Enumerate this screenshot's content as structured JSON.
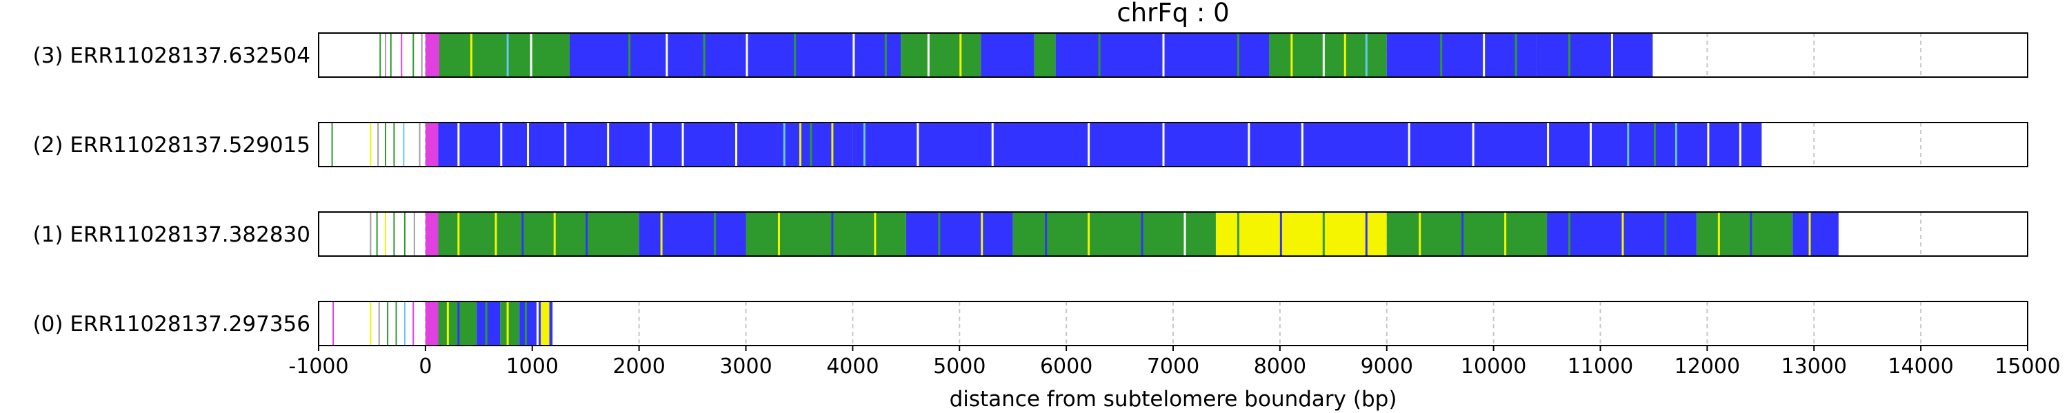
{
  "chart_data": {
    "type": "track",
    "title": "chrFq : 0",
    "xlabel": "distance from subtelomere boundary (bp)",
    "xlim": [
      -1000,
      15000
    ],
    "xticks": [
      -1000,
      0,
      1000,
      2000,
      3000,
      4000,
      5000,
      6000,
      7000,
      8000,
      9000,
      10000,
      11000,
      12000,
      13000,
      14000,
      15000
    ],
    "grid": "vertical-dashed",
    "colors": {
      "blue": "#3333ff",
      "green": "#2e9a2e",
      "yellow": "#f5f500",
      "light_blue": "#66c7f0",
      "magenta": "#e040e0",
      "gray": "#a0a0a0",
      "white": "#ffffff"
    },
    "reads": [
      {
        "label": "(3) ERR11028137.632504",
        "start": -430,
        "end": 11490,
        "prelude": [
          [
            -430,
            "green"
          ],
          [
            -380,
            "gray"
          ],
          [
            -330,
            "green"
          ],
          [
            -230,
            "magenta"
          ],
          [
            -120,
            "green"
          ],
          [
            -40,
            "gray"
          ]
        ],
        "segments": [
          [
            0,
            130,
            "magenta"
          ],
          [
            130,
            1350,
            "green"
          ],
          [
            1350,
            4450,
            "blue"
          ],
          [
            4450,
            5200,
            "green"
          ],
          [
            5200,
            5700,
            "blue"
          ],
          [
            5700,
            5900,
            "green"
          ],
          [
            5900,
            7900,
            "blue"
          ],
          [
            7900,
            9000,
            "green"
          ],
          [
            9000,
            10400,
            "blue"
          ],
          [
            10400,
            11490,
            "blue"
          ]
        ],
        "stripes": [
          [
            420,
            "yellow"
          ],
          [
            760,
            "light_blue"
          ],
          [
            980,
            "white"
          ],
          [
            1900,
            "green"
          ],
          [
            2250,
            "white"
          ],
          [
            2600,
            "green"
          ],
          [
            3000,
            "white"
          ],
          [
            3450,
            "green"
          ],
          [
            4000,
            "white"
          ],
          [
            4300,
            "green"
          ],
          [
            4700,
            "white"
          ],
          [
            5000,
            "yellow"
          ],
          [
            6300,
            "green"
          ],
          [
            6900,
            "white"
          ],
          [
            7600,
            "green"
          ],
          [
            8100,
            "yellow"
          ],
          [
            8400,
            "white"
          ],
          [
            8600,
            "yellow"
          ],
          [
            8800,
            "light_blue"
          ],
          [
            9500,
            "green"
          ],
          [
            9900,
            "white"
          ],
          [
            10200,
            "green"
          ],
          [
            10700,
            "green"
          ],
          [
            11100,
            "white"
          ]
        ]
      },
      {
        "label": "(2) ERR11028137.529015",
        "start": -880,
        "end": 12510,
        "prelude": [
          [
            -880,
            "green"
          ],
          [
            -520,
            "yellow"
          ],
          [
            -450,
            "gray"
          ],
          [
            -380,
            "green"
          ],
          [
            -300,
            "green"
          ],
          [
            -210,
            "light_blue"
          ],
          [
            -60,
            "gray"
          ]
        ],
        "segments": [
          [
            0,
            120,
            "magenta"
          ],
          [
            120,
            3300,
            "blue"
          ],
          [
            3300,
            4000,
            "blue"
          ],
          [
            4000,
            11200,
            "blue"
          ],
          [
            11200,
            12510,
            "blue"
          ]
        ],
        "stripes": [
          [
            300,
            "white"
          ],
          [
            700,
            "white"
          ],
          [
            950,
            "white"
          ],
          [
            1300,
            "white"
          ],
          [
            1700,
            "white"
          ],
          [
            2100,
            "white"
          ],
          [
            2400,
            "white"
          ],
          [
            2900,
            "white"
          ],
          [
            3350,
            "light_blue"
          ],
          [
            3500,
            "yellow"
          ],
          [
            3600,
            "green"
          ],
          [
            3800,
            "yellow"
          ],
          [
            4100,
            "light_blue"
          ],
          [
            4600,
            "white"
          ],
          [
            5300,
            "white"
          ],
          [
            6200,
            "white"
          ],
          [
            6900,
            "white"
          ],
          [
            7700,
            "white"
          ],
          [
            8200,
            "white"
          ],
          [
            9200,
            "white"
          ],
          [
            9800,
            "white"
          ],
          [
            10500,
            "white"
          ],
          [
            10900,
            "white"
          ],
          [
            11250,
            "light_blue"
          ],
          [
            11500,
            "green"
          ],
          [
            11700,
            "light_blue"
          ],
          [
            12000,
            "white"
          ],
          [
            12300,
            "white"
          ]
        ]
      },
      {
        "label": "(1) ERR11028137.382830",
        "start": -520,
        "end": 13230,
        "prelude": [
          [
            -520,
            "gray"
          ],
          [
            -460,
            "green"
          ],
          [
            -380,
            "yellow"
          ],
          [
            -300,
            "green"
          ],
          [
            -200,
            "green"
          ],
          [
            -110,
            "gray"
          ]
        ],
        "segments": [
          [
            0,
            120,
            "magenta"
          ],
          [
            120,
            2000,
            "green"
          ],
          [
            2000,
            3000,
            "blue"
          ],
          [
            3000,
            4500,
            "green"
          ],
          [
            4500,
            5500,
            "blue"
          ],
          [
            5500,
            7400,
            "green"
          ],
          [
            7400,
            9000,
            "yellow"
          ],
          [
            9000,
            10500,
            "green"
          ],
          [
            10500,
            11900,
            "blue"
          ],
          [
            11900,
            12800,
            "green"
          ],
          [
            12800,
            13230,
            "blue"
          ]
        ],
        "stripes": [
          [
            300,
            "yellow"
          ],
          [
            650,
            "yellow"
          ],
          [
            900,
            "blue"
          ],
          [
            1200,
            "yellow"
          ],
          [
            1500,
            "blue"
          ],
          [
            2200,
            "yellow"
          ],
          [
            2700,
            "green"
          ],
          [
            3300,
            "yellow"
          ],
          [
            3800,
            "blue"
          ],
          [
            4200,
            "yellow"
          ],
          [
            4800,
            "green"
          ],
          [
            5200,
            "yellow"
          ],
          [
            5800,
            "blue"
          ],
          [
            6200,
            "yellow"
          ],
          [
            6700,
            "blue"
          ],
          [
            7100,
            "white"
          ],
          [
            7600,
            "green"
          ],
          [
            8000,
            "blue"
          ],
          [
            8400,
            "green"
          ],
          [
            8800,
            "blue"
          ],
          [
            9300,
            "yellow"
          ],
          [
            9700,
            "blue"
          ],
          [
            10100,
            "yellow"
          ],
          [
            10700,
            "green"
          ],
          [
            11200,
            "yellow"
          ],
          [
            11600,
            "green"
          ],
          [
            12100,
            "yellow"
          ],
          [
            12400,
            "blue"
          ],
          [
            12950,
            "yellow"
          ]
        ]
      },
      {
        "label": "(0) ERR11028137.297356",
        "start": -870,
        "end": 1190,
        "prelude": [
          [
            -870,
            "magenta"
          ],
          [
            -520,
            "yellow"
          ],
          [
            -440,
            "gray"
          ],
          [
            -360,
            "green"
          ],
          [
            -280,
            "green"
          ],
          [
            -200,
            "light_blue"
          ],
          [
            -120,
            "magenta"
          ]
        ],
        "segments": [
          [
            0,
            120,
            "magenta"
          ],
          [
            120,
            480,
            "green"
          ],
          [
            480,
            700,
            "blue"
          ],
          [
            700,
            880,
            "green"
          ],
          [
            880,
            1080,
            "blue"
          ],
          [
            1080,
            1160,
            "yellow"
          ],
          [
            1160,
            1190,
            "blue"
          ]
        ],
        "stripes": [
          [
            200,
            "yellow"
          ],
          [
            300,
            "blue"
          ],
          [
            560,
            "green"
          ],
          [
            760,
            "yellow"
          ],
          [
            930,
            "green"
          ],
          [
            1040,
            "white"
          ]
        ]
      }
    ]
  }
}
